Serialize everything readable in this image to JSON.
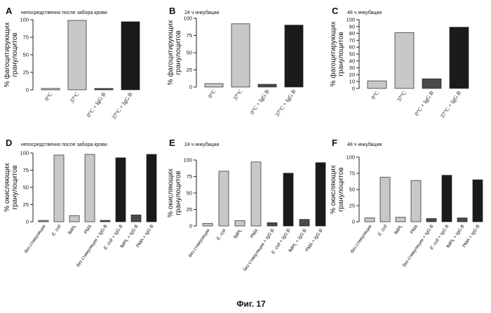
{
  "caption": "Фиг. 17",
  "colors": {
    "white": "#ffffff",
    "light": "#c8c8c8",
    "medium": "#9a9a9a",
    "dark": "#4a4a4a",
    "black": "#1a1a1a"
  },
  "chart_data": [
    {
      "panel": "A",
      "type": "bar",
      "title": "непосредственно после забора крови",
      "ylabel": "% фагоцитирующих гранулоцитов",
      "ylim": [
        0,
        100
      ],
      "yticks": [
        0,
        25,
        50,
        75,
        100
      ],
      "categories": [
        "0°C",
        "37°C",
        "0°C + IgG B",
        "37°C + IgG B"
      ],
      "values": [
        2,
        99,
        2,
        97
      ],
      "shades": [
        "light",
        "light",
        "dark",
        "black"
      ]
    },
    {
      "panel": "B",
      "type": "bar",
      "title": "24 ч инкубации",
      "ylabel": "% фагоцитирующих гранулоцитов",
      "ylim": [
        0,
        100
      ],
      "yticks": [
        0,
        25,
        50,
        75,
        100
      ],
      "categories": [
        "0°C",
        "37°C",
        "0°C + IgG B",
        "37°C + IgG B"
      ],
      "values": [
        5,
        92,
        4,
        90
      ],
      "shades": [
        "light",
        "light",
        "dark",
        "black"
      ]
    },
    {
      "panel": "C",
      "type": "bar",
      "title": "48 ч инкубации",
      "ylabel": "% фагоцитирующих гранулоцитов",
      "ylim": [
        0,
        100
      ],
      "yticks": [
        0,
        10,
        20,
        30,
        40,
        50,
        60,
        70,
        80,
        90,
        100
      ],
      "categories": [
        "0°C",
        "37°C",
        "0°C + IgG B",
        "37°C + IgG B"
      ],
      "values": [
        11,
        81,
        14,
        89
      ],
      "shades": [
        "light",
        "light",
        "dark",
        "black"
      ]
    },
    {
      "panel": "D",
      "type": "bar",
      "title": "непосредственно после забора крови",
      "ylabel": "% окисляющих гранулоцитов",
      "ylim": [
        0,
        100
      ],
      "yticks": [
        0,
        25,
        50,
        75,
        100
      ],
      "categories": [
        "без стимуляции",
        "E. coli",
        "fMPL",
        "PMA",
        "без стимуляции + IgG B",
        "E. coli + IgG B",
        "fMPL + IgG B",
        "PMA + IgG B"
      ],
      "values": [
        2,
        97,
        9,
        98,
        2,
        93,
        10,
        98
      ],
      "shades": [
        "medium",
        "light",
        "light",
        "light",
        "dark",
        "black",
        "dark",
        "black"
      ]
    },
    {
      "panel": "E",
      "type": "bar",
      "title": "24 ч инкубации",
      "ylabel": "% окисляющих гранулоцитов",
      "ylim": [
        0,
        100
      ],
      "yticks": [
        0,
        25,
        50,
        75,
        100
      ],
      "categories": [
        "без стимуляции",
        "E. coli",
        "fMPL",
        "PMA",
        "без стимуляции + IgG B",
        "E. coli + IgG B",
        "fMPL + IgG B",
        "PMA + IgG B"
      ],
      "values": [
        4,
        83,
        8,
        97,
        5,
        80,
        10,
        96
      ],
      "shades": [
        "light",
        "light",
        "light",
        "light",
        "dark",
        "black",
        "dark",
        "black"
      ]
    },
    {
      "panel": "F",
      "type": "bar",
      "title": "48 ч инкубации",
      "ylabel": "% окисляющих гранулоцитов",
      "ylim": [
        0,
        100
      ],
      "yticks": [
        0,
        25,
        50,
        75,
        100
      ],
      "categories": [
        "без стимуляции",
        "E. coli",
        "fMPL",
        "PMA",
        "без стимуляции + IgG B",
        "E. coli + IgG B",
        "fMPL + IgG B",
        "PMA + IgG B"
      ],
      "values": [
        6,
        69,
        7,
        64,
        5,
        72,
        6,
        65
      ],
      "shades": [
        "light",
        "light",
        "light",
        "light",
        "dark",
        "black",
        "dark",
        "black"
      ]
    }
  ]
}
